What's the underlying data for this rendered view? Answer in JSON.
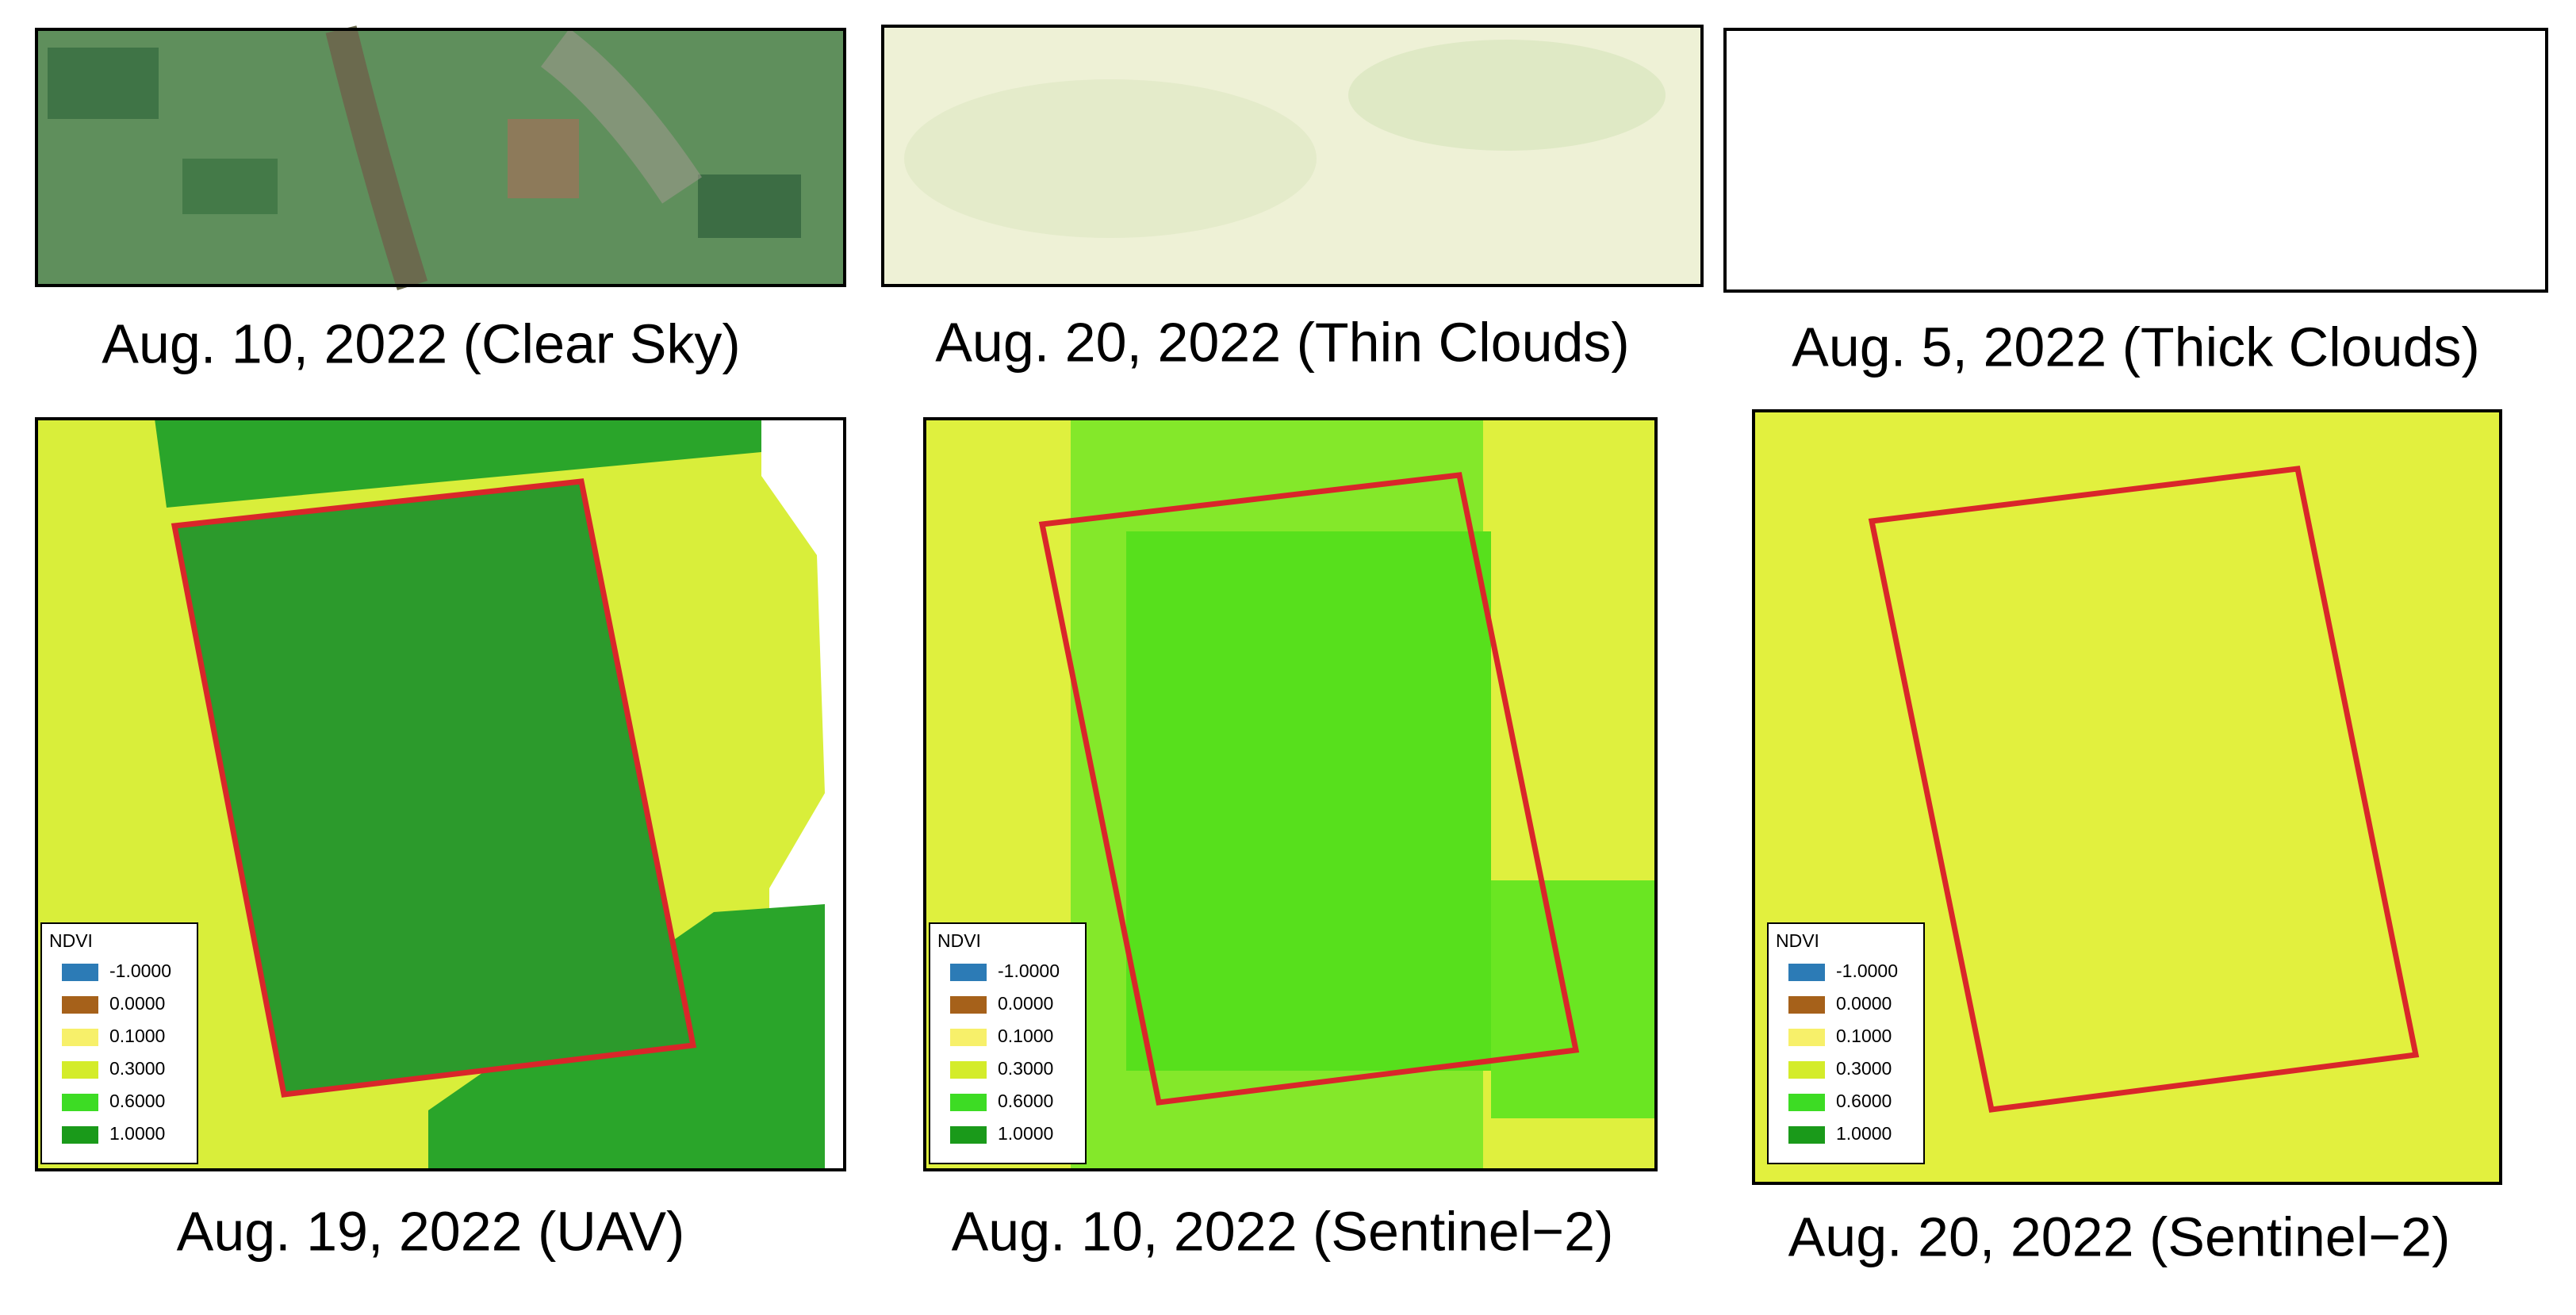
{
  "panels": [
    {
      "caption": "Aug. 10, 2022 (Clear Sky)"
    },
    {
      "caption": "Aug. 20, 2022 (Thin Clouds)"
    },
    {
      "caption": "Aug. 5, 2022 (Thick Clouds)"
    },
    {
      "caption": "Aug. 19, 2022 (UAV)",
      "legend": {
        "title": "NDVI",
        "entries": [
          {
            "label": "-1.0000",
            "color": "#2c7bb6"
          },
          {
            "label": "0.0000",
            "color": "#a6611a"
          },
          {
            "label": "0.1000",
            "color": "#f7f06a"
          },
          {
            "label": "0.3000",
            "color": "#d4ec2a"
          },
          {
            "label": "0.6000",
            "color": "#3ddc24"
          },
          {
            "label": "1.0000",
            "color": "#1a9a1a"
          }
        ]
      }
    },
    {
      "caption": "Aug. 10, 2022 (Sentinel−2)",
      "legend": {
        "title": "NDVI",
        "entries": [
          {
            "label": "-1.0000",
            "color": "#2c7bb6"
          },
          {
            "label": "0.0000",
            "color": "#a6611a"
          },
          {
            "label": "0.1000",
            "color": "#f7f06a"
          },
          {
            "label": "0.3000",
            "color": "#d4ec2a"
          },
          {
            "label": "0.6000",
            "color": "#3ddc24"
          },
          {
            "label": "1.0000",
            "color": "#1a9a1a"
          }
        ]
      }
    },
    {
      "caption": "Aug. 20, 2022 (Sentinel−2)",
      "legend": {
        "title": "NDVI",
        "entries": [
          {
            "label": "-1.0000",
            "color": "#2c7bb6"
          },
          {
            "label": "0.0000",
            "color": "#a6611a"
          },
          {
            "label": "0.1000",
            "color": "#f7f06a"
          },
          {
            "label": "0.3000",
            "color": "#d4ec2a"
          },
          {
            "label": "0.6000",
            "color": "#3ddc24"
          },
          {
            "label": "1.0000",
            "color": "#1a9a1a"
          }
        ]
      }
    }
  ]
}
